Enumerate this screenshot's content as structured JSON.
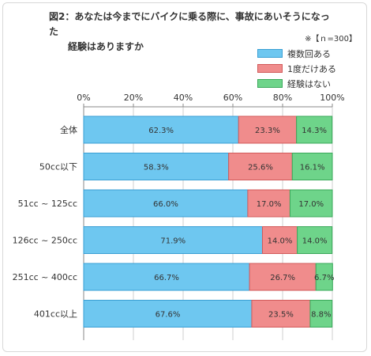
{
  "title": {
    "line1": "図2：あなたは今までにバイクに乗る際に、事故にあいそうになった",
    "line2": "経験はありますか"
  },
  "note": "※【ｎ=300】",
  "colors": {
    "series": [
      "#6ec7f0",
      "#f08c8c",
      "#6ed48a"
    ],
    "series_border": [
      "#3a9fd4",
      "#d25a5a",
      "#3aa85a"
    ]
  },
  "chart_data": {
    "type": "bar",
    "orientation": "horizontal",
    "stacked": true,
    "percent": true,
    "categories": [
      "全体",
      "50cc以下",
      "51cc ~ 125cc",
      "126cc ~ 250cc",
      "251cc ~ 400cc",
      "401cc以上"
    ],
    "series": [
      {
        "name": "複数回ある",
        "values": [
          62.3,
          58.3,
          66.0,
          71.9,
          66.7,
          67.6
        ]
      },
      {
        "name": "1度だけある",
        "values": [
          23.3,
          25.6,
          17.0,
          14.0,
          26.7,
          23.5
        ]
      },
      {
        "name": "経験はない",
        "values": [
          14.3,
          16.1,
          17.0,
          14.0,
          6.7,
          8.8
        ]
      }
    ],
    "data_labels": [
      [
        "62.3%",
        "23.3%",
        "14.3%"
      ],
      [
        "58.3%",
        "25.6%",
        "16.1%"
      ],
      [
        "66.0%",
        "17.0%",
        "17.0%"
      ],
      [
        "71.9%",
        "14.0%",
        "14.0%"
      ],
      [
        "66.7%",
        "26.7%",
        "6.7%"
      ],
      [
        "67.6%",
        "23.5%",
        "8.8%"
      ]
    ],
    "x_ticks": [
      "0%",
      "20%",
      "40%",
      "60%",
      "80%",
      "100%"
    ],
    "xlim": [
      0,
      100
    ],
    "grid": true,
    "legend_position": "top-right"
  }
}
